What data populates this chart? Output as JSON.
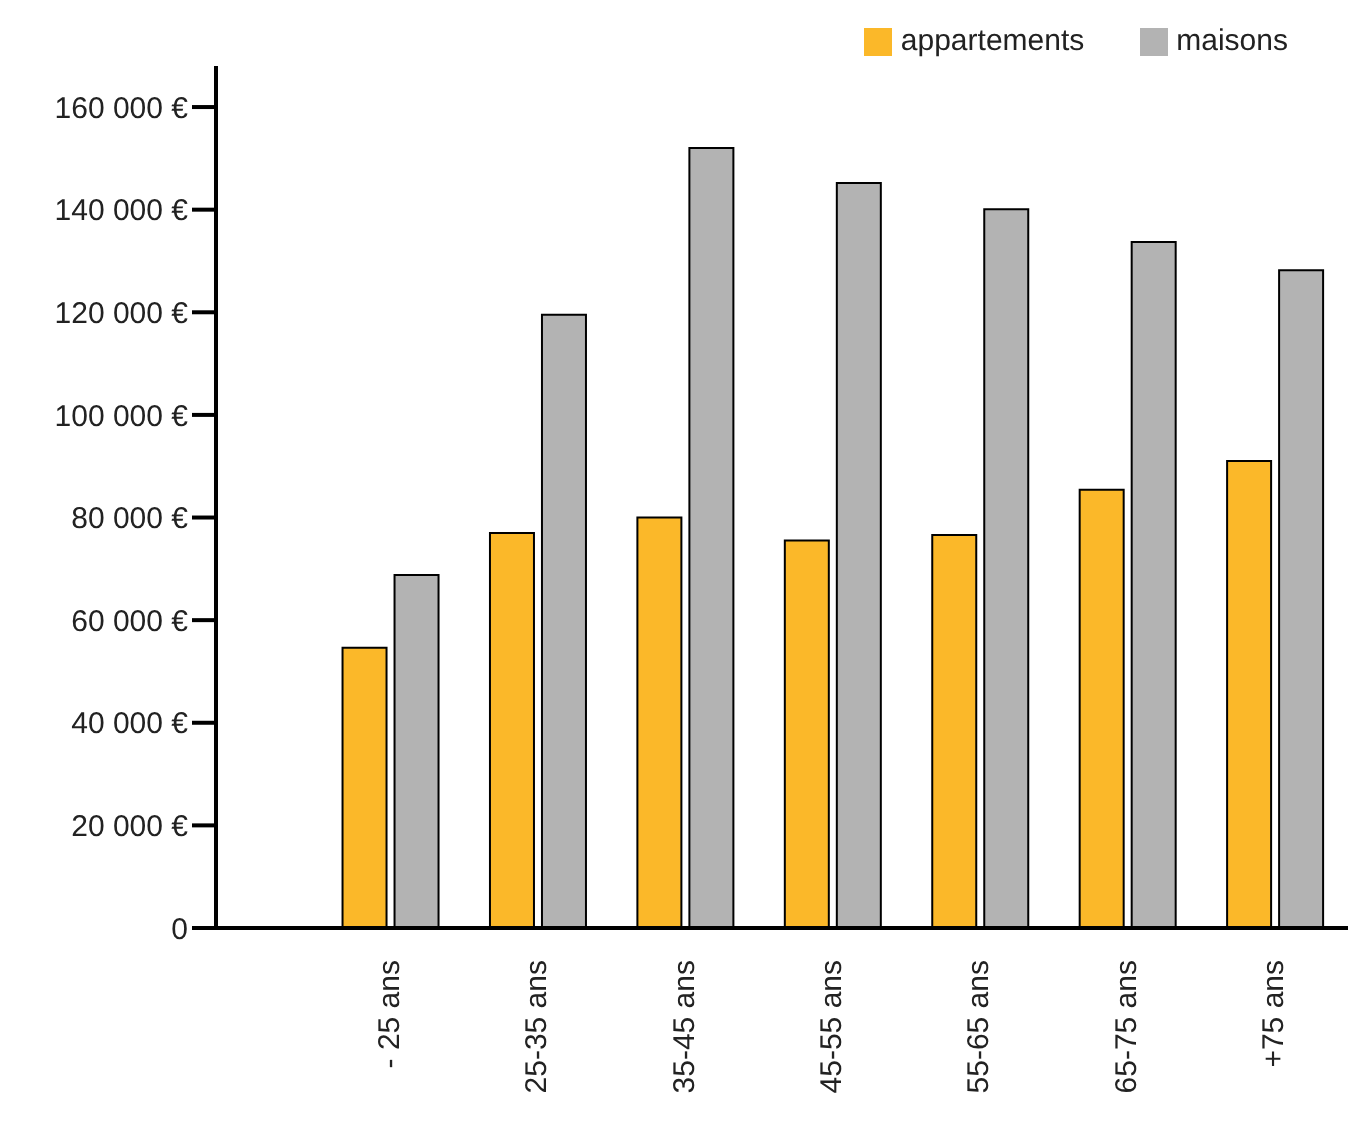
{
  "chart_data": {
    "type": "bar",
    "categories": [
      "- 25 ans",
      "25-35 ans",
      "35-45 ans",
      "45-55 ans",
      "55-65 ans",
      "65-75 ans",
      "+75 ans"
    ],
    "series": [
      {
        "name": "appartements",
        "color": "#fbb829",
        "values": [
          54600,
          77000,
          80000,
          75500,
          76600,
          85400,
          91000
        ]
      },
      {
        "name": "maisons",
        "color": "#b3b3b3",
        "values": [
          68800,
          119500,
          152000,
          145200,
          140100,
          133700,
          128200
        ]
      }
    ],
    "ylim": [
      0,
      168000
    ],
    "yticks": [
      {
        "value": 0,
        "label": "0"
      },
      {
        "value": 20000,
        "label": "20 000  €"
      },
      {
        "value": 40000,
        "label": "40 000  €"
      },
      {
        "value": 60000,
        "label": "60 000  €"
      },
      {
        "value": 80000,
        "label": "80 000  €"
      },
      {
        "value": 100000,
        "label": "100 000  €"
      },
      {
        "value": 120000,
        "label": "120 000  €"
      },
      {
        "value": 140000,
        "label": "140 000  €"
      },
      {
        "value": 160000,
        "label": "160 000  €"
      }
    ],
    "grid": false,
    "legend": "top right"
  }
}
